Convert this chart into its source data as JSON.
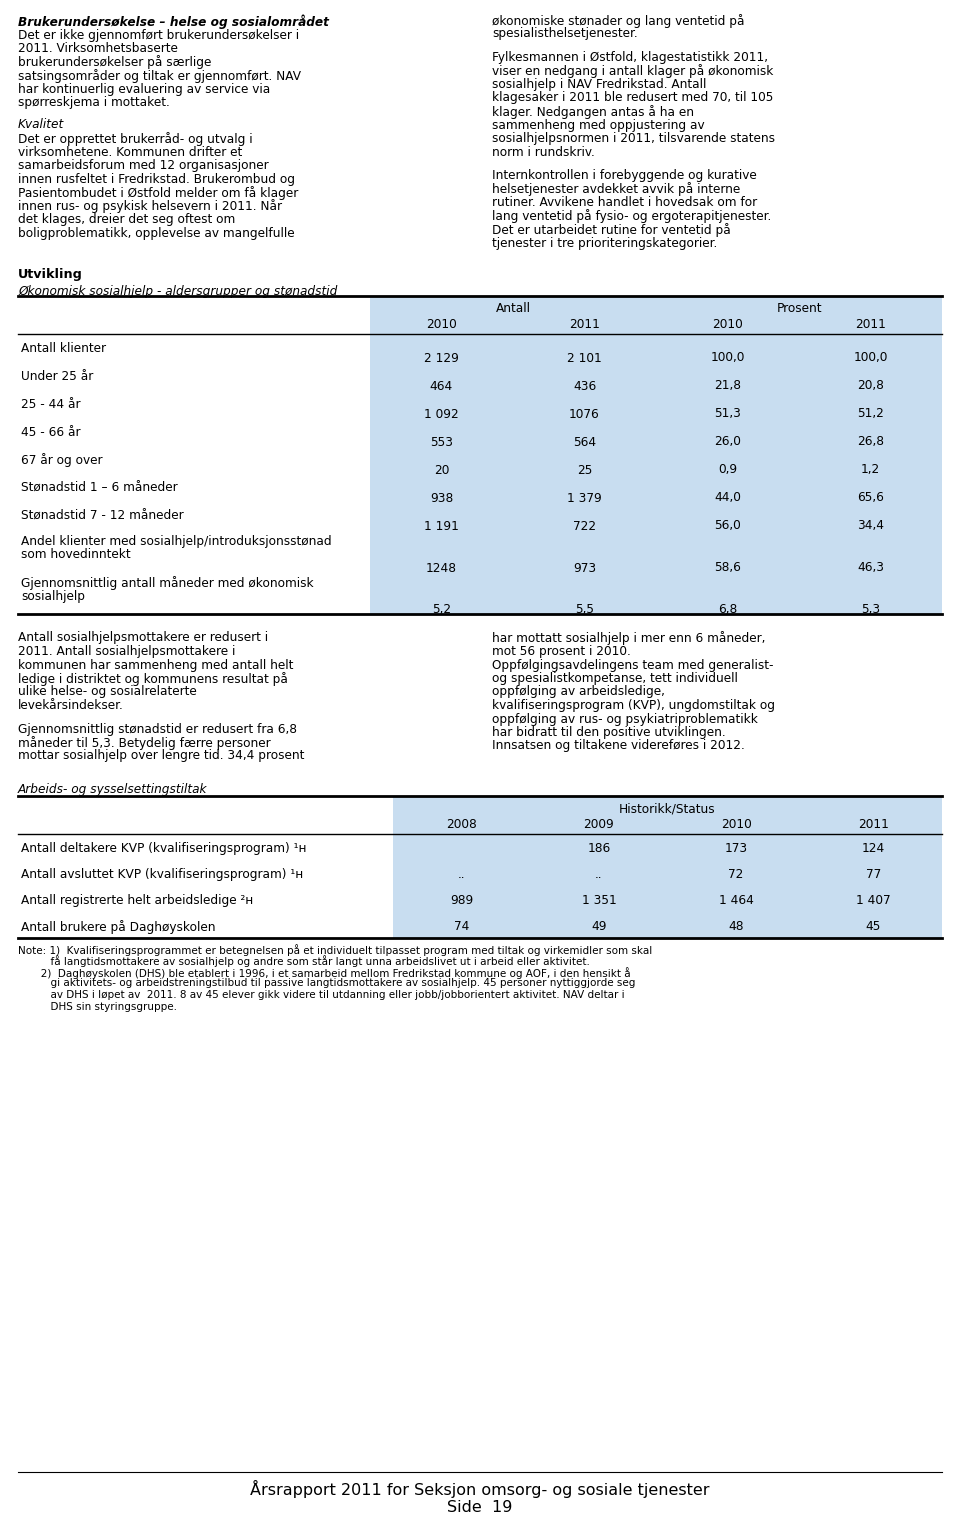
{
  "page_title": "Årsrapport 2011 for Seksjon omsorg- og sosiale tjenester",
  "page_number": "Side  19",
  "table_bg_color": "#c8ddf0",
  "table1_rows": [
    {
      "label": "Antall klienter",
      "values": [
        "2 129",
        "2 101",
        "100,0",
        "100,0"
      ],
      "lines": 1
    },
    {
      "label": "Under 25 år",
      "values": [
        "464",
        "436",
        "21,8",
        "20,8"
      ],
      "lines": 1
    },
    {
      "label": "25 - 44 år",
      "values": [
        "1 092",
        "1076",
        "51,3",
        "51,2"
      ],
      "lines": 1
    },
    {
      "label": "45 - 66 år",
      "values": [
        "553",
        "564",
        "26,0",
        "26,8"
      ],
      "lines": 1
    },
    {
      "label": "67 år og over",
      "values": [
        "20",
        "25",
        "0,9",
        "1,2"
      ],
      "lines": 1
    },
    {
      "label": "Stønadstid 1 – 6 måneder",
      "values": [
        "938",
        "1 379",
        "44,0",
        "65,6"
      ],
      "lines": 1
    },
    {
      "label": "Stønadstid 7 - 12 måneder",
      "values": [
        "1 191",
        "722",
        "56,0",
        "34,4"
      ],
      "lines": 1
    },
    {
      "label": "Andel klienter med sosialhjelp/introduksjonsstønad\nsom hovedinntekt",
      "values": [
        "1248",
        "973",
        "58,6",
        "46,3"
      ],
      "lines": 2
    },
    {
      "label": "Gjennomsnittlig antall måneder med økonomisk\nsosialhjelp",
      "values": [
        "5,2",
        "5,5",
        "6,8",
        "5,3"
      ],
      "lines": 2
    }
  ],
  "table2_rows": [
    {
      "label": "Antall deltakere KVP (kvalifiseringsprogram) ¹ʜ",
      "values": [
        "",
        "186",
        "173",
        "124"
      ]
    },
    {
      "label": "Antall avsluttet KVP (kvalifiseringsprogram) ¹ʜ",
      "values": [
        "..",
        "..",
        "72",
        "77"
      ]
    },
    {
      "label": "Antall registrerte helt arbeidsledige ²ʜ",
      "values": [
        "989",
        "1 351",
        "1 464",
        "1 407"
      ]
    },
    {
      "label": "Antall brukere på Daghøyskolen",
      "values": [
        "74",
        "49",
        "48",
        "45"
      ]
    }
  ]
}
